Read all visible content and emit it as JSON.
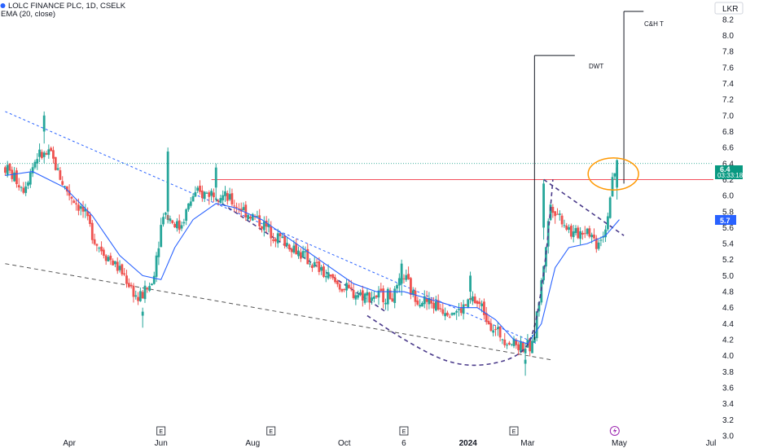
{
  "legend": {
    "symbol": "LOLC FINANCE PLC, 1D, CSELK",
    "indicator": "EMA (20, close)"
  },
  "chart_data": {
    "type": "candlestick",
    "currency": "LKR",
    "ylim": [
      3.0,
      8.4
    ],
    "y_ticks": [
      "3.0",
      "3.2",
      "3.4",
      "3.6",
      "3.8",
      "4.0",
      "4.2",
      "4.4",
      "4.6",
      "4.8",
      "5.0",
      "5.2",
      "5.4",
      "5.6",
      "5.8",
      "6.0",
      "6.2",
      "6.4",
      "6.6",
      "6.8",
      "7.0",
      "7.2",
      "7.4",
      "7.6",
      "7.8",
      "8.0",
      "8.2"
    ],
    "x_ticks": [
      "Apr",
      "Jun",
      "Aug",
      "Oct",
      "6",
      "2024",
      "Mar",
      "May",
      "Jul"
    ],
    "x_tick_pos": [
      2.3,
      4.3,
      6.3,
      8.3,
      9.6,
      11.0,
      12.3,
      14.3,
      16.3
    ],
    "xlim": [
      0.9,
      16.4
    ],
    "last_price": "6.4",
    "countdown": "03:33:18",
    "ema_last": "5.7",
    "event_markers": [
      "E",
      "E",
      "E",
      "E"
    ],
    "event_pos": [
      4.3,
      6.7,
      9.6,
      12.0
    ],
    "lightning_pos": 14.2,
    "colors": {
      "up": "#26a69a",
      "down": "#ef5350",
      "ema": "#2962ff",
      "resistance": "#f23645",
      "ellipse": "#ff9800",
      "badge_price": "#089981",
      "badge_ema": "#2962ff"
    },
    "candles": {
      "key_points": [
        [
          0.9,
          6.35
        ],
        [
          1.3,
          6.1
        ],
        [
          1.6,
          6.5
        ],
        [
          1.9,
          6.5
        ],
        [
          2.2,
          6.1
        ],
        [
          2.6,
          5.8
        ],
        [
          2.9,
          5.4
        ],
        [
          3.2,
          5.2
        ],
        [
          3.5,
          5.0
        ],
        [
          3.8,
          4.7
        ],
        [
          4.1,
          4.9
        ],
        [
          4.35,
          5.8
        ],
        [
          4.7,
          5.6
        ],
        [
          5.0,
          6.0
        ],
        [
          5.5,
          6.05
        ],
        [
          5.9,
          5.9
        ],
        [
          6.4,
          5.7
        ],
        [
          6.8,
          5.5
        ],
        [
          7.2,
          5.35
        ],
        [
          7.6,
          5.15
        ],
        [
          8.0,
          4.95
        ],
        [
          8.4,
          4.8
        ],
        [
          8.8,
          4.75
        ],
        [
          9.4,
          4.75
        ],
        [
          9.6,
          5.0
        ],
        [
          9.8,
          4.75
        ],
        [
          10.4,
          4.6
        ],
        [
          10.8,
          4.55
        ],
        [
          11.1,
          4.7
        ],
        [
          11.3,
          4.6
        ],
        [
          11.6,
          4.3
        ],
        [
          12.0,
          4.15
        ],
        [
          12.4,
          4.1
        ],
        [
          12.6,
          4.9
        ],
        [
          12.8,
          5.9
        ],
        [
          13.0,
          5.75
        ],
        [
          13.3,
          5.5
        ],
        [
          13.6,
          5.6
        ],
        [
          13.8,
          5.4
        ],
        [
          14.0,
          5.6
        ],
        [
          14.1,
          6.0
        ],
        [
          14.25,
          6.4
        ]
      ],
      "spikes": [
        [
          1.75,
          7.05,
          6.8
        ],
        [
          3.9,
          4.6,
          4.5
        ],
        [
          4.45,
          6.6,
          5.8
        ],
        [
          5.5,
          6.4,
          6.1
        ],
        [
          9.55,
          5.2,
          4.9
        ],
        [
          11.05,
          5.05,
          4.8
        ],
        [
          12.25,
          4.0,
          3.9
        ],
        [
          12.65,
          6.2,
          5.6
        ],
        [
          14.25,
          6.4,
          6.1
        ]
      ]
    },
    "ema": [
      [
        0.9,
        6.25
      ],
      [
        1.5,
        6.3
      ],
      [
        2.2,
        6.1
      ],
      [
        2.8,
        5.75
      ],
      [
        3.4,
        5.25
      ],
      [
        3.9,
        5.0
      ],
      [
        4.3,
        4.95
      ],
      [
        4.6,
        5.35
      ],
      [
        5.0,
        5.7
      ],
      [
        5.5,
        5.9
      ],
      [
        5.9,
        5.85
      ],
      [
        6.5,
        5.7
      ],
      [
        7.0,
        5.5
      ],
      [
        7.5,
        5.3
      ],
      [
        8.0,
        5.1
      ],
      [
        8.5,
        4.9
      ],
      [
        9.0,
        4.8
      ],
      [
        9.6,
        4.8
      ],
      [
        10.2,
        4.7
      ],
      [
        10.8,
        4.6
      ],
      [
        11.2,
        4.6
      ],
      [
        11.6,
        4.45
      ],
      [
        12.0,
        4.2
      ],
      [
        12.3,
        4.15
      ],
      [
        12.6,
        4.4
      ],
      [
        12.9,
        5.1
      ],
      [
        13.2,
        5.35
      ],
      [
        13.6,
        5.4
      ],
      [
        14.0,
        5.5
      ],
      [
        14.3,
        5.7
      ]
    ],
    "trendlines": [
      {
        "style": "dotted",
        "color": "#2962ff",
        "points": [
          [
            0.9,
            7.05
          ],
          [
            12.5,
            4.15
          ]
        ]
      },
      {
        "style": "dashed",
        "color": "#555555",
        "points": [
          [
            0.9,
            5.15
          ],
          [
            12.8,
            3.95
          ]
        ]
      },
      {
        "style": "dashed",
        "color": "#4a3a8a",
        "points": [
          [
            5.5,
            5.95
          ],
          [
            9.2,
            4.55
          ]
        ]
      },
      {
        "style": "dashed",
        "color": "#4a3a8a",
        "points": [
          [
            12.65,
            6.2
          ],
          [
            14.4,
            5.5
          ]
        ]
      }
    ],
    "cup_curve": {
      "color": "#4a3a8a",
      "points": [
        [
          8.8,
          4.5
        ],
        [
          9.6,
          4.2
        ],
        [
          10.4,
          3.95
        ],
        [
          11.0,
          3.87
        ],
        [
          11.6,
          3.9
        ],
        [
          12.1,
          4.0
        ],
        [
          12.4,
          4.2
        ],
        [
          12.6,
          4.8
        ],
        [
          12.75,
          5.5
        ],
        [
          12.85,
          6.2
        ]
      ]
    },
    "resistance_level": 6.2,
    "last_price_level": 6.4,
    "measure_lines": [
      {
        "label": "DWT",
        "x": 12.45,
        "top": 7.75,
        "bottom": 4.2,
        "label_x": 13.4
      },
      {
        "label": "C&H T",
        "x": 14.4,
        "top": 8.3,
        "bottom": 6.15,
        "label_x": 14.9
      }
    ],
    "ellipse": {
      "cx": 14.17,
      "cy": 6.27,
      "rx_days": 0.55,
      "ry": 0.2
    }
  }
}
